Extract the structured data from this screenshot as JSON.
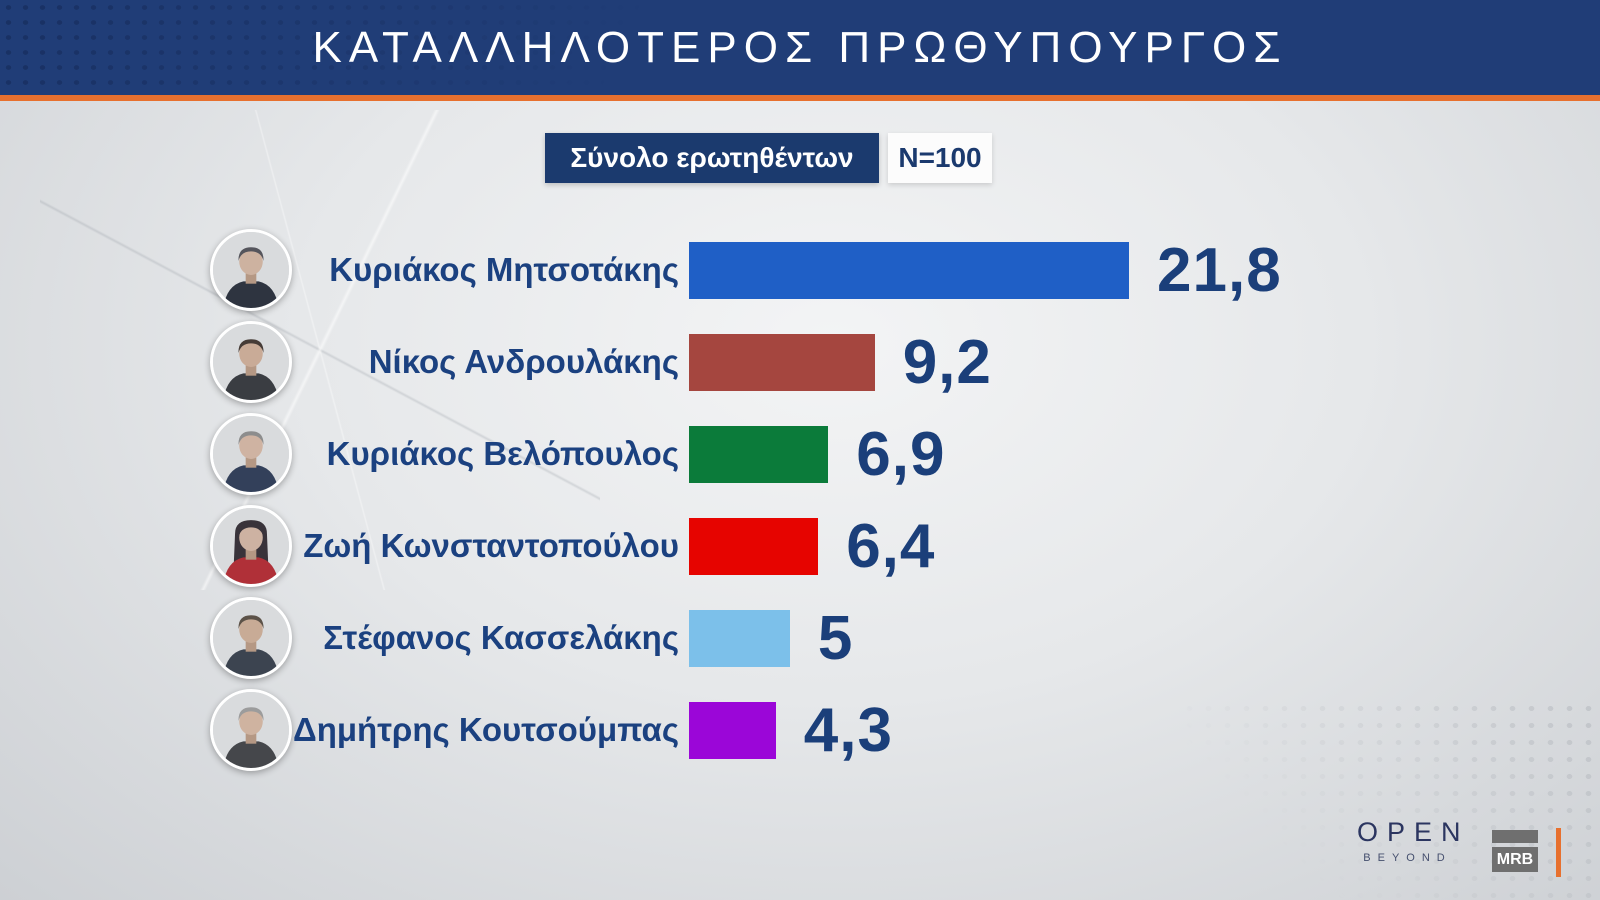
{
  "header": {
    "title": "ΚΑΤΑΛΛΗΛΟΤΕΡΟΣ ΠΡΩΘΥΠΟΥΡΓΟΣ"
  },
  "subheader": {
    "label": "Σύνολο ερωτηθέντων",
    "sample": "N=100"
  },
  "chart_data": {
    "type": "bar",
    "orientation": "horizontal",
    "title": "ΚΑΤΑΛΛΗΛΟΤΕΡΟΣ ΠΡΩΘΥΠΟΥΡΓΟΣ",
    "subtitle": "Σύνολο ερωτηθέντων",
    "sample_size": "N=100",
    "categories": [
      "Κυριάκος Μητσοτάκης",
      "Νίκος Ανδρουλάκης",
      "Κυριάκος Βελόπουλος",
      "Ζωή Κωνσταντοπούλου",
      "Στέφανος Κασσελάκης",
      "Δημήτρης Κουτσούμπας"
    ],
    "values": [
      21.8,
      9.2,
      6.9,
      6.4,
      5,
      4.3
    ],
    "value_labels": [
      "21,8",
      "9,2",
      "6,9",
      "6,4",
      "5",
      "4,3"
    ],
    "bar_colors": [
      "#1f5fc6",
      "#a5463f",
      "#0b7b3a",
      "#e60400",
      "#7cc0ea",
      "#9b06d8"
    ],
    "xlim": [
      0,
      22
    ],
    "grid": false,
    "legend": "none"
  },
  "rows": [
    {
      "avatar_name": "avatar-kyriakos-mitsotakis",
      "hair": "short",
      "hair_color": "#55555c",
      "suit_color": "#2e3440",
      "skin_color": "#cdb2a0"
    },
    {
      "avatar_name": "avatar-nikos-androulakis",
      "hair": "short",
      "hair_color": "#463c37",
      "suit_color": "#3a3d42",
      "skin_color": "#c9ab97"
    },
    {
      "avatar_name": "avatar-kyriakos-velopoulos",
      "hair": "short",
      "hair_color": "#8d8d8d",
      "suit_color": "#33405a",
      "skin_color": "#cfb3a2"
    },
    {
      "avatar_name": "avatar-zoi-konstantopoulou",
      "hair": "long",
      "hair_color": "#39333a",
      "suit_color": "#b03038",
      "skin_color": "#cdb2a2"
    },
    {
      "avatar_name": "avatar-stefanos-kasselakis",
      "hair": "short",
      "hair_color": "#5c5248",
      "suit_color": "#3c4450",
      "skin_color": "#c8ab96"
    },
    {
      "avatar_name": "avatar-dimitris-koutsoumpas",
      "hair": "short",
      "hair_color": "#9c9c9c",
      "suit_color": "#45474b",
      "skin_color": "#cfb3a0"
    }
  ],
  "footer": {
    "open": "OPEN",
    "beyond": "BEYOND",
    "mrb": "MRB"
  },
  "colors": {
    "header_bg": "#203d77",
    "accent_orange": "#e7702e",
    "text_navy": "#1b4180",
    "value_navy": "#1b3f7a",
    "subheader_bg": "#1b3a6e"
  }
}
